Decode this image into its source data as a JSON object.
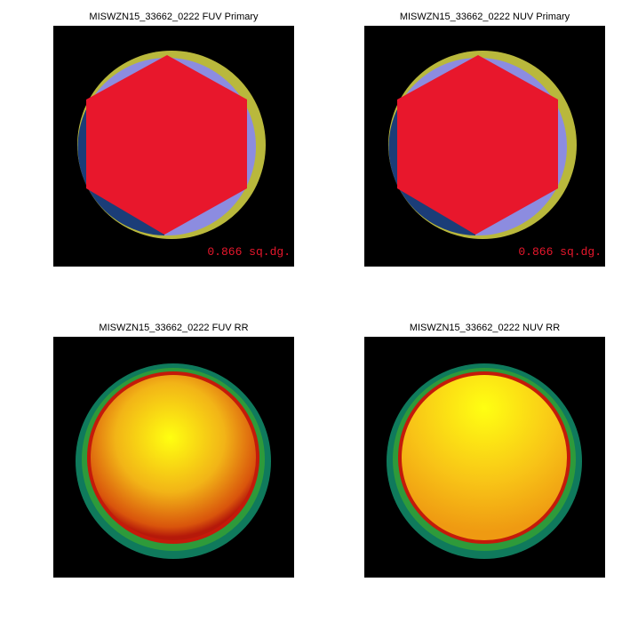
{
  "panels": [
    {
      "title": "MISWZN15_33662_0222 FUV Primary",
      "label": "0.866 sq.dg."
    },
    {
      "title": "MISWZN15_33662_0222 NUV Primary",
      "label": "0.866 sq.dg."
    },
    {
      "title": "MISWZN15_33662_0222 FUV RR"
    },
    {
      "title": "MISWZN15_33662_0222 NUV RR"
    }
  ]
}
